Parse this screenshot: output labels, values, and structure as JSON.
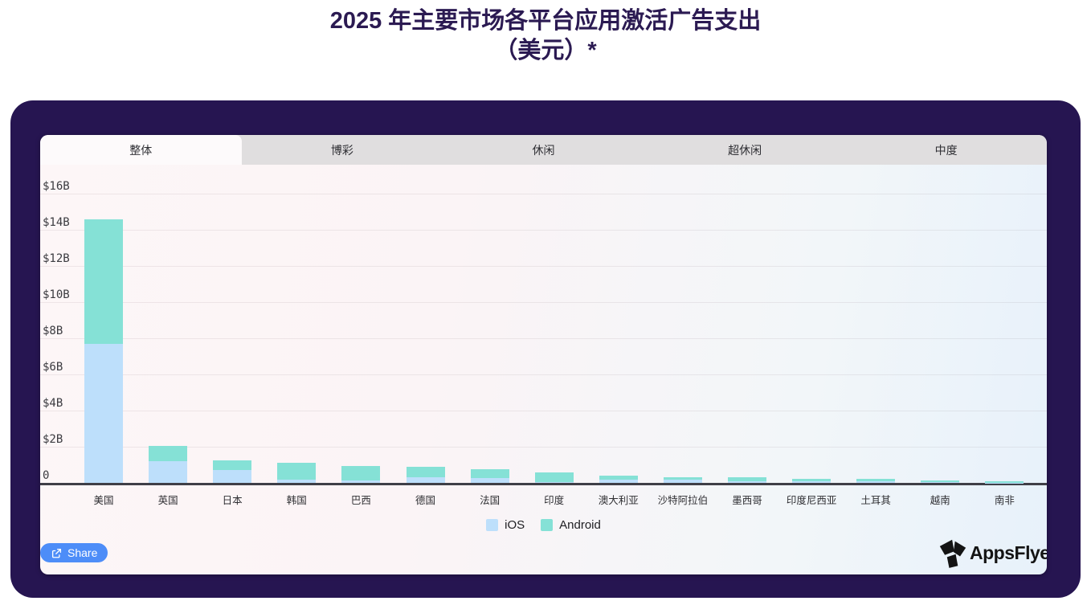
{
  "page": {
    "title_line1": "2025 年主要市场各平台应用激活广告支出",
    "title_line2": "（美元）*"
  },
  "tabs": [
    {
      "label": "整体",
      "active": true
    },
    {
      "label": "博彩",
      "active": false
    },
    {
      "label": "休闲",
      "active": false
    },
    {
      "label": "超休闲",
      "active": false
    },
    {
      "label": "中度",
      "active": false
    }
  ],
  "chart_data": {
    "type": "bar",
    "stacked": true,
    "title": "2025 年主要市场各平台应用激活广告支出（美元）*",
    "unit": "USD billions",
    "categories": [
      "美国",
      "英国",
      "日本",
      "韩国",
      "巴西",
      "德国",
      "法国",
      "印度",
      "澳大利亚",
      "沙特阿拉伯",
      "墨西哥",
      "印度尼西亚",
      "土耳其",
      "越南",
      "南非"
    ],
    "series": [
      {
        "name": "iOS",
        "color": "#bddffb",
        "values": [
          7.7,
          1.2,
          0.7,
          0.2,
          0.15,
          0.3,
          0.25,
          0.05,
          0.2,
          0.18,
          0.1,
          0.07,
          0.07,
          0.03,
          0.02
        ]
      },
      {
        "name": "Android",
        "color": "#85e1d6",
        "values": [
          6.9,
          0.85,
          0.55,
          0.9,
          0.8,
          0.6,
          0.5,
          0.55,
          0.2,
          0.15,
          0.2,
          0.17,
          0.17,
          0.1,
          0.08
        ]
      }
    ],
    "y_ticks": [
      {
        "label": "$16B",
        "value": 16
      },
      {
        "label": "$14B",
        "value": 14
      },
      {
        "label": "$12B",
        "value": 12
      },
      {
        "label": "$10B",
        "value": 10
      },
      {
        "label": "$8B",
        "value": 8
      },
      {
        "label": "$6B",
        "value": 6
      },
      {
        "label": "$4B",
        "value": 4
      },
      {
        "label": "$2B",
        "value": 2
      },
      {
        "label": "0",
        "value": 0
      }
    ],
    "ylim": [
      0,
      16
    ],
    "grid": true,
    "legend_position": "bottom"
  },
  "footer": {
    "share_label": "Share",
    "brand": "AppsFlyer"
  },
  "colors": {
    "card_background": "#261551",
    "title_text": "#2b1a52",
    "tab_inactive_bg": "#e0dedf",
    "tab_active_bg": "#fdfafb",
    "share_button": "#4d8df8",
    "axis_line": "#3f3f47"
  }
}
